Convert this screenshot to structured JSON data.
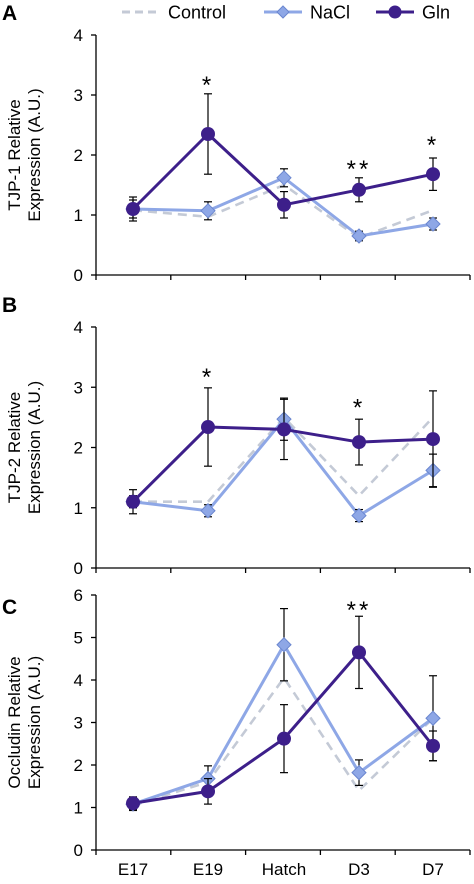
{
  "legend": {
    "placement": "top",
    "entries": [
      {
        "label": "Control",
        "color": "#c4cad6",
        "style": "dashed",
        "marker": "none"
      },
      {
        "label": "NaCl",
        "color": "#8ea7e6",
        "style": "solid",
        "marker": "diamond"
      },
      {
        "label": "Gln",
        "color": "#3d1f8a",
        "style": "solid",
        "marker": "circle"
      }
    ]
  },
  "chart_data": [
    {
      "type": "line",
      "panel_label": "A",
      "ylabel_lines": [
        "TJP-1 Relative",
        "Expression (A.U.)"
      ],
      "categories": [
        "E17",
        "E19",
        "Hatch",
        "D3",
        "D7"
      ],
      "ylim": [
        0,
        4
      ],
      "yticks": [
        0,
        1,
        2,
        3,
        4
      ],
      "grid": false,
      "series": [
        {
          "name": "Control",
          "values": [
            1.08,
            0.97,
            1.5,
            0.62,
            1.08
          ],
          "errors": [
            0,
            0,
            0,
            0,
            0
          ]
        },
        {
          "name": "NaCl",
          "values": [
            1.1,
            1.07,
            1.62,
            0.65,
            0.85
          ],
          "errors": [
            0.15,
            0.15,
            0.15,
            0.08,
            0.1
          ]
        },
        {
          "name": "Gln",
          "values": [
            1.1,
            2.35,
            1.17,
            1.42,
            1.68
          ],
          "errors": [
            0.2,
            0.67,
            0.22,
            0.2,
            0.27
          ]
        }
      ],
      "annotations": [
        {
          "category": "E19",
          "y": 3.2,
          "text": "*"
        },
        {
          "category": "D3",
          "y": 1.8,
          "text": "**"
        },
        {
          "category": "D7",
          "y": 2.2,
          "text": "*"
        }
      ]
    },
    {
      "type": "line",
      "panel_label": "B",
      "ylabel_lines": [
        "TJP-2 Relative",
        "Expression (A.U.)"
      ],
      "categories": [
        "E17",
        "E19",
        "Hatch",
        "D3",
        "D7"
      ],
      "ylim": [
        0,
        4
      ],
      "yticks": [
        0,
        1,
        2,
        3,
        4
      ],
      "grid": false,
      "series": [
        {
          "name": "Control",
          "values": [
            1.1,
            1.1,
            2.5,
            1.2,
            2.5
          ],
          "errors": [
            0,
            0,
            0,
            0,
            0
          ]
        },
        {
          "name": "NaCl",
          "values": [
            1.1,
            0.95,
            2.47,
            0.87,
            1.62
          ],
          "errors": [
            0.1,
            0.1,
            0.35,
            0.1,
            0.27
          ]
        },
        {
          "name": "Gln",
          "values": [
            1.1,
            2.34,
            2.3,
            2.09,
            2.14
          ],
          "errors": [
            0.2,
            0.65,
            0.5,
            0.38,
            0.8
          ]
        }
      ],
      "annotations": [
        {
          "category": "E19",
          "y": 3.2,
          "text": "*"
        },
        {
          "category": "D3",
          "y": 2.7,
          "text": "*"
        }
      ]
    },
    {
      "type": "line",
      "panel_label": "C",
      "ylabel_lines": [
        "Occludin Relative",
        "Expression (A.U.)"
      ],
      "categories": [
        "E17",
        "E19",
        "Hatch",
        "D3",
        "D7"
      ],
      "xlabels_visible": true,
      "ylim": [
        0,
        6
      ],
      "yticks": [
        0,
        1,
        2,
        3,
        4,
        5,
        6
      ],
      "grid": false,
      "series": [
        {
          "name": "Control",
          "values": [
            1.05,
            1.6,
            4.05,
            1.4,
            3.1
          ],
          "errors": [
            0,
            0,
            0,
            0,
            0
          ]
        },
        {
          "name": "NaCl",
          "values": [
            1.08,
            1.68,
            4.83,
            1.82,
            3.1
          ],
          "errors": [
            0.15,
            0.3,
            0.85,
            0.3,
            1.0
          ]
        },
        {
          "name": "Gln",
          "values": [
            1.1,
            1.38,
            2.62,
            4.65,
            2.45
          ],
          "errors": [
            0.15,
            0.3,
            0.8,
            0.85,
            0.35
          ]
        }
      ],
      "annotations": [
        {
          "category": "D3",
          "y": 5.7,
          "text": "**"
        }
      ]
    }
  ]
}
